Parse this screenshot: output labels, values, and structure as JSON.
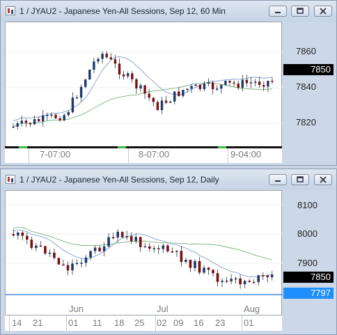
{
  "window1": {
    "title": "1 / JYAU2 - Japanese Yen-All Sessions, Sep 12, 60 Min",
    "price_axis": [
      "7860",
      "7840",
      "7820"
    ],
    "last_price": "7850",
    "time_labels": [
      "7-07:00",
      "8-07:00",
      "9-04:00"
    ],
    "last_price_color": "#000000"
  },
  "window2": {
    "title": "1 / JYAU2 - Japanese Yen-All Sessions, Sep 12, Daily",
    "price_axis": [
      "8100",
      "8000",
      "7900"
    ],
    "last_price": "7850",
    "line_price": "7797",
    "line_color": "#1e6fd9",
    "month_labels": [
      "Jun",
      "Jul",
      "Aug"
    ],
    "day_labels": [
      "14",
      "21",
      "01",
      "11",
      "18",
      "25",
      "02",
      "09",
      "16",
      "23",
      "01"
    ]
  },
  "buttons": {
    "minimize": "minimize",
    "restore": "restore",
    "close": "close"
  }
}
